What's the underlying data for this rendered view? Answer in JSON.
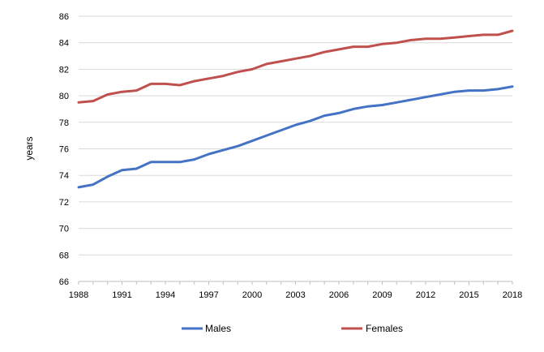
{
  "chart_data": {
    "type": "line",
    "title": "",
    "xlabel": "",
    "ylabel": "years",
    "ylim": [
      66,
      86
    ],
    "yticks": [
      66,
      68,
      70,
      72,
      74,
      76,
      78,
      80,
      82,
      84,
      86
    ],
    "xlim": [
      1988,
      2018
    ],
    "xticks": [
      1988,
      1991,
      1994,
      1997,
      2000,
      2003,
      2006,
      2009,
      2012,
      2015,
      2018
    ],
    "grid": "horizontal",
    "legend_position": "bottom",
    "x": [
      1988,
      1989,
      1990,
      1991,
      1992,
      1993,
      1994,
      1995,
      1996,
      1997,
      1998,
      1999,
      2000,
      2001,
      2002,
      2003,
      2004,
      2005,
      2006,
      2007,
      2008,
      2009,
      2010,
      2011,
      2012,
      2013,
      2014,
      2015,
      2016,
      2017,
      2018
    ],
    "series": [
      {
        "name": "Males",
        "color": "#4472c4",
        "values": [
          73.1,
          73.3,
          73.9,
          74.4,
          74.5,
          75.0,
          75.0,
          75.0,
          75.2,
          75.6,
          75.9,
          76.2,
          76.6,
          77.0,
          77.4,
          77.8,
          78.1,
          78.5,
          78.7,
          79.0,
          79.2,
          79.3,
          79.5,
          79.7,
          79.9,
          80.1,
          80.3,
          80.4,
          80.4,
          80.5,
          80.7
        ]
      },
      {
        "name": "Females",
        "color": "#c0504d",
        "values": [
          79.5,
          79.6,
          80.1,
          80.3,
          80.4,
          80.9,
          80.9,
          80.8,
          81.1,
          81.3,
          81.5,
          81.8,
          82.0,
          82.4,
          82.6,
          82.8,
          83.0,
          83.3,
          83.5,
          83.7,
          83.7,
          83.9,
          84.0,
          84.2,
          84.3,
          84.3,
          84.4,
          84.5,
          84.6,
          84.6,
          84.9
        ]
      }
    ]
  }
}
